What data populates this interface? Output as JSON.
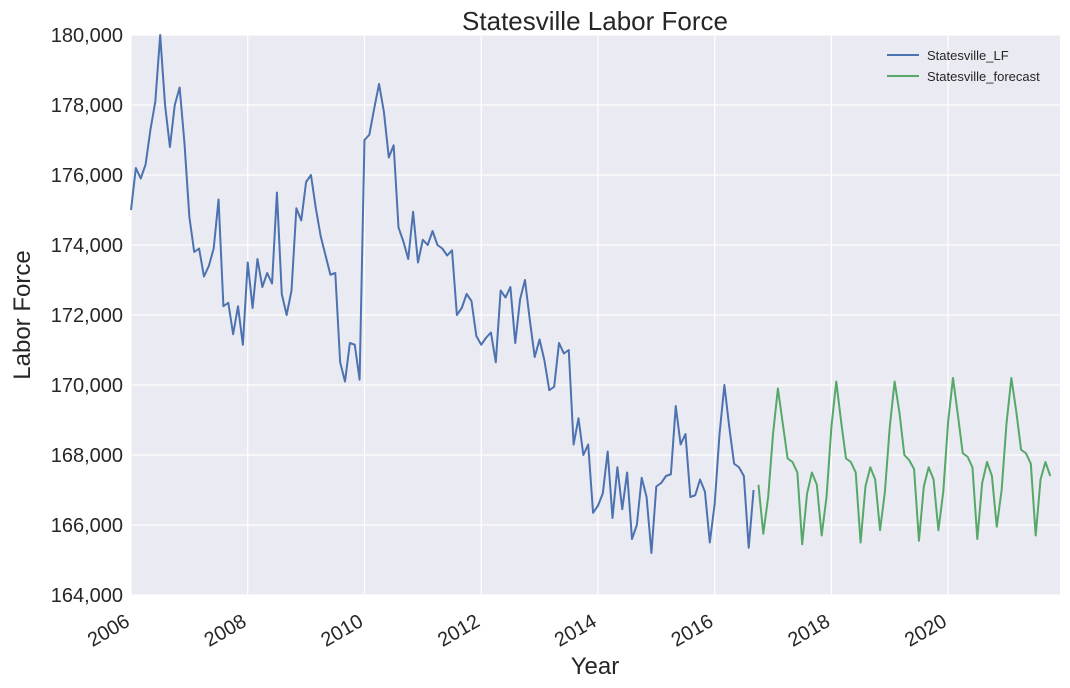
{
  "chart_data": {
    "type": "line",
    "title": "Statesville Labor Force",
    "xlabel": "Year",
    "ylabel": "Labor Force",
    "xlim": [
      "2006-01",
      "2021-12"
    ],
    "ylim": [
      164000,
      180000
    ],
    "x_ticks": [
      "2006",
      "2008",
      "2010",
      "2012",
      "2014",
      "2016",
      "2018",
      "2020"
    ],
    "y_ticks": [
      "164,000",
      "166,000",
      "168,000",
      "170,000",
      "172,000",
      "174,000",
      "176,000",
      "178,000",
      "180,000"
    ],
    "grid": true,
    "legend_position": "top-right",
    "series": [
      {
        "name": "Statesville_LF",
        "color": "#4c72b0",
        "start": "2006-01",
        "frequency": "monthly",
        "values": [
          175000,
          176200,
          175900,
          176300,
          177300,
          178100,
          180000,
          178000,
          176800,
          178000,
          178500,
          176900,
          174800,
          173800,
          173900,
          173100,
          173400,
          173900,
          175300,
          172250,
          172350,
          171450,
          172250,
          171150,
          173500,
          172200,
          173600,
          172800,
          173200,
          172900,
          175500,
          172600,
          172000,
          172700,
          175050,
          174700,
          175800,
          176000,
          175050,
          174250,
          173700,
          173150,
          173200,
          170650,
          170100,
          171200,
          171150,
          170150,
          177000,
          177150,
          177900,
          178600,
          177800,
          176500,
          176850,
          174500,
          174100,
          173600,
          174950,
          173500,
          174150,
          174000,
          174400,
          174000,
          173900,
          173700,
          173850,
          172000,
          172200,
          172600,
          172400,
          171400,
          171150,
          171350,
          171500,
          170650,
          172700,
          172500,
          172800,
          171200,
          172450,
          173000,
          171850,
          170800,
          171300,
          170700,
          169850,
          169950,
          171200,
          170900,
          171000,
          168300,
          169050,
          168000,
          168300,
          166350,
          166550,
          166900,
          168100,
          166200,
          167650,
          166450,
          167500,
          165600,
          166000,
          167350,
          166800,
          165200,
          167100,
          167200,
          167400,
          167450,
          169400,
          168300,
          168600,
          166800,
          166850,
          167300,
          166950,
          165500,
          166600,
          168600,
          170000,
          168800,
          167750,
          167650,
          167400,
          165350,
          167000
        ]
      },
      {
        "name": "Statesville_forecast",
        "color": "#55a868",
        "start": "2016-10",
        "frequency": "monthly",
        "values": [
          167150,
          165750,
          166800,
          168600,
          169900,
          168900,
          167900,
          167800,
          167500,
          165450,
          166900,
          167500,
          167150,
          165700,
          166800,
          168800,
          170100,
          168950,
          167900,
          167800,
          167500,
          165500,
          167100,
          167650,
          167300,
          165850,
          166950,
          168800,
          170100,
          169200,
          168000,
          167850,
          167600,
          165550,
          167100,
          167650,
          167300,
          165850,
          166950,
          168950,
          170200,
          169150,
          168050,
          167950,
          167650,
          165600,
          167200,
          167800,
          167400,
          165950,
          167000,
          168900,
          170200,
          169250,
          168150,
          168050,
          167750,
          165700,
          167300,
          167800,
          167400
        ]
      }
    ]
  }
}
